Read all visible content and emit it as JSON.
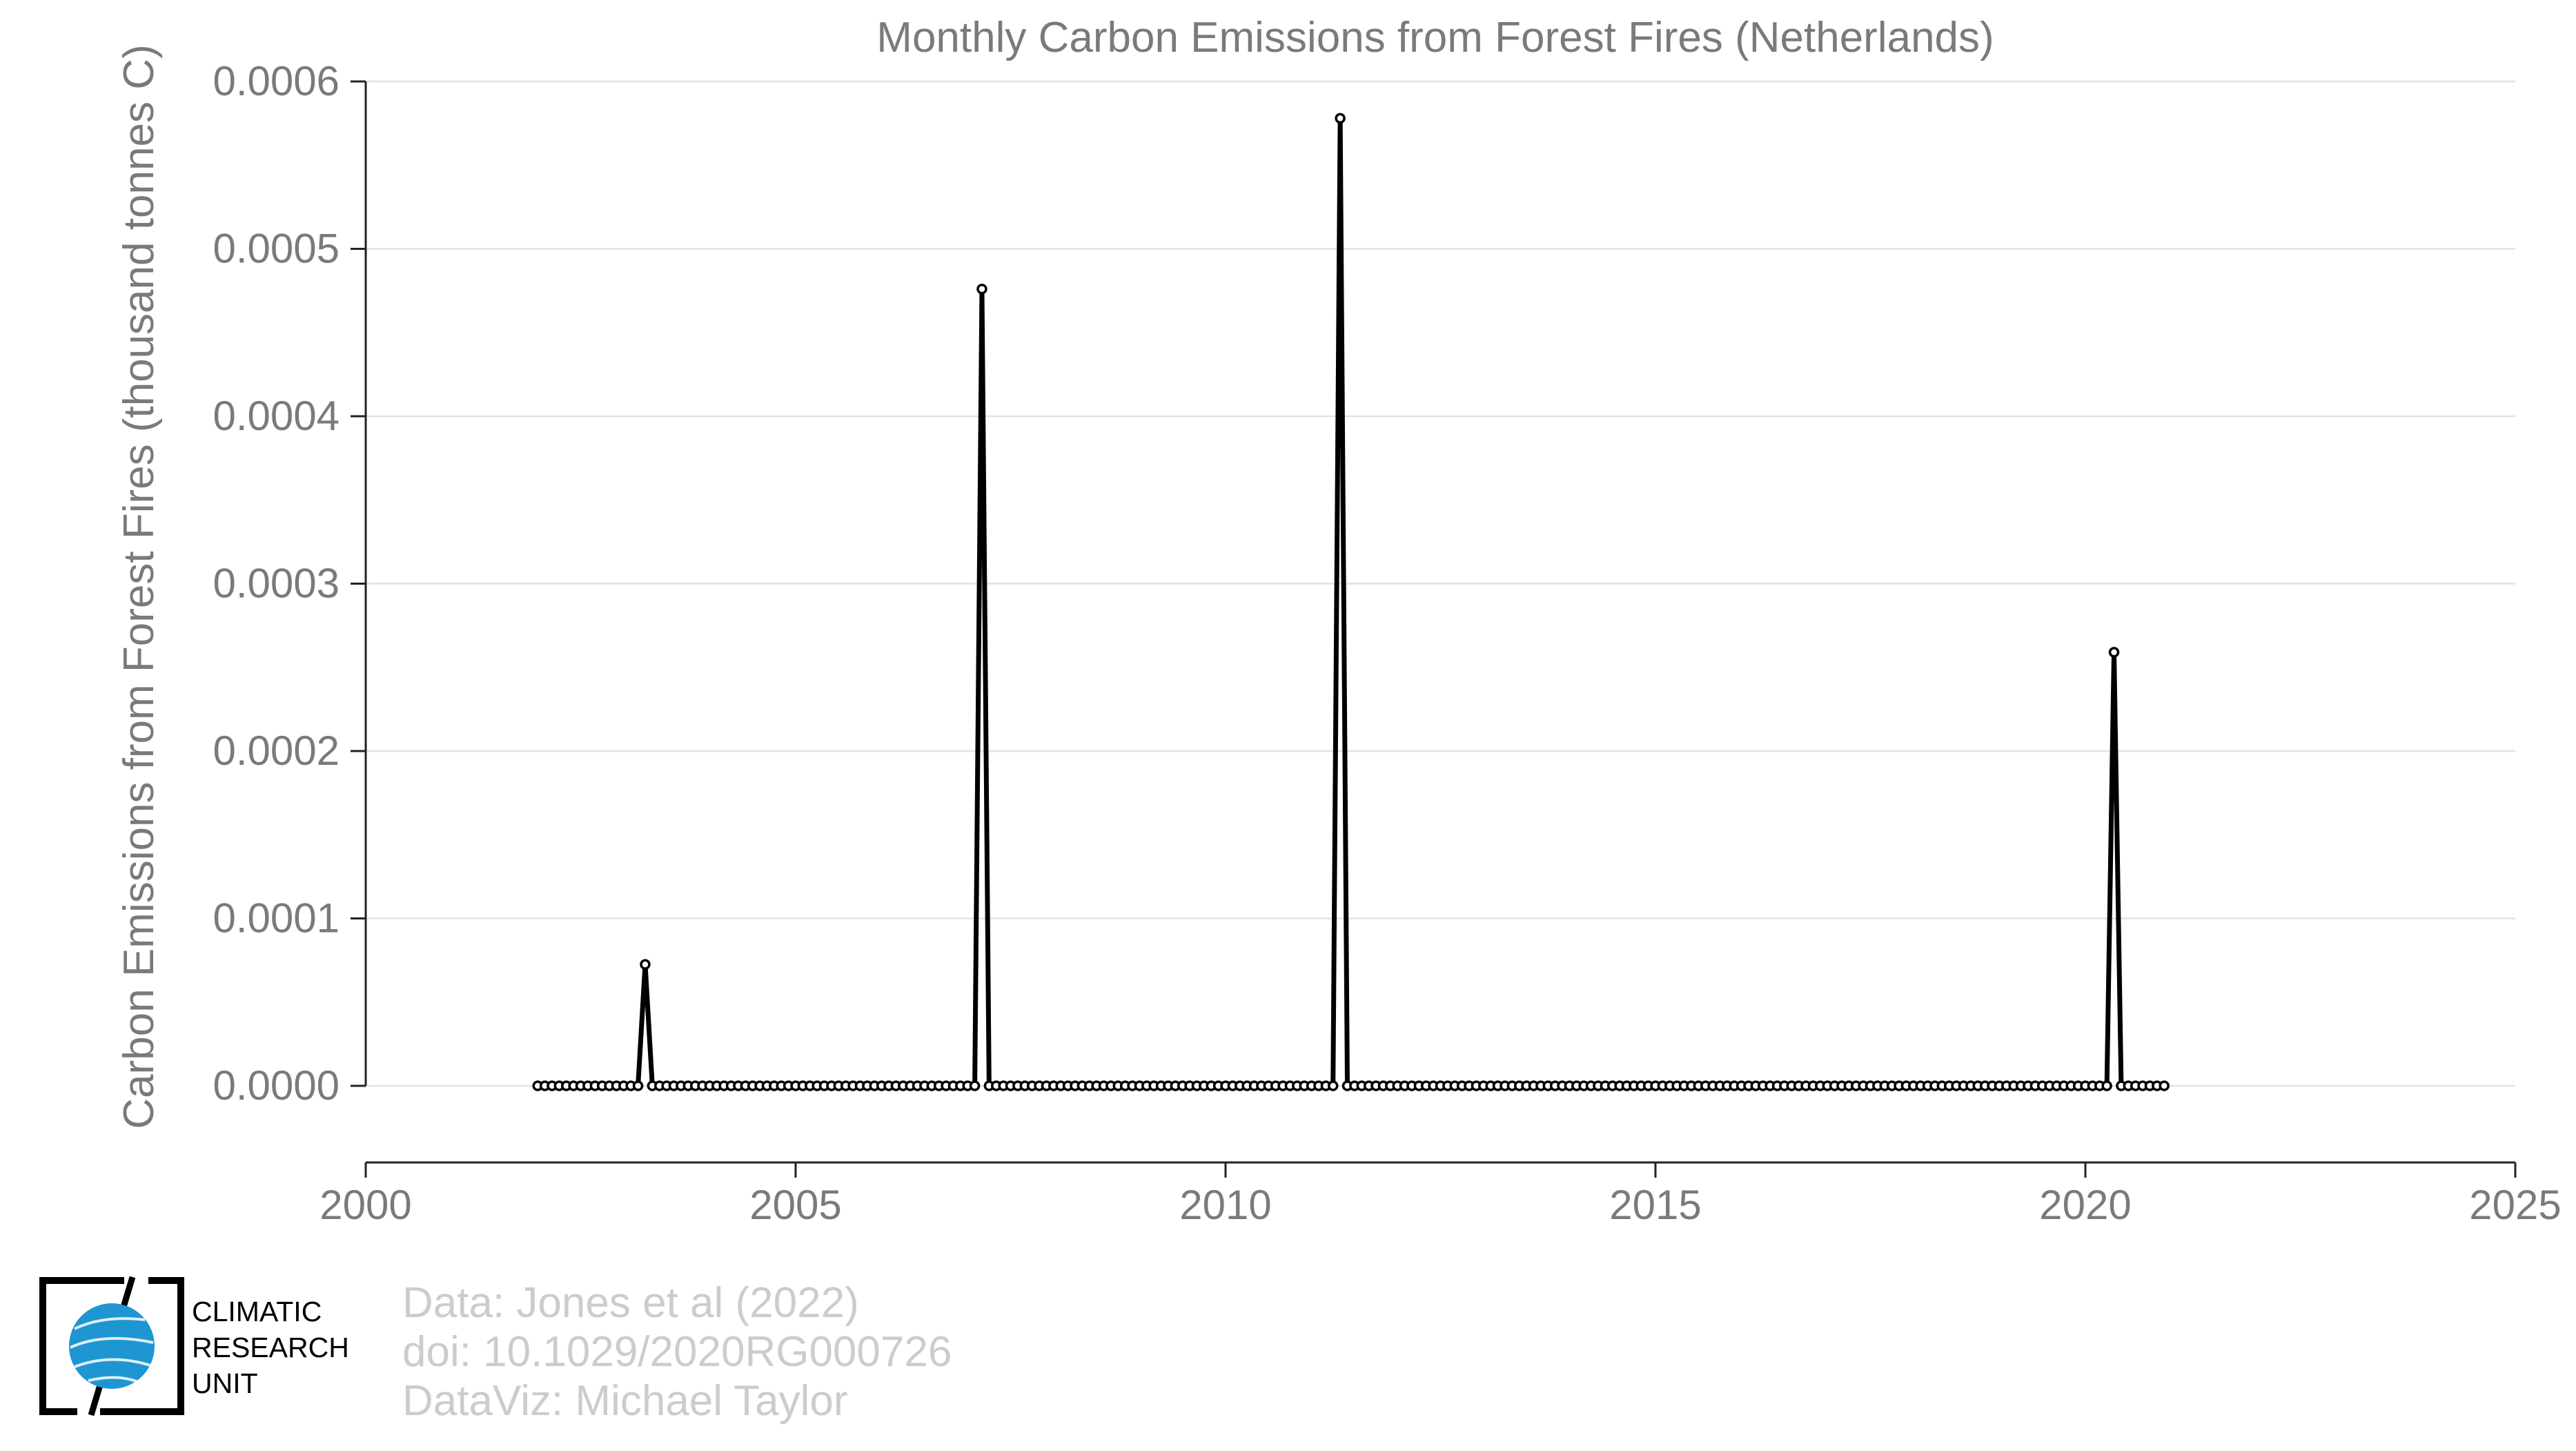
{
  "chart_data": {
    "type": "line",
    "title": "Monthly Carbon Emissions from Forest Fires (Netherlands)",
    "xlabel": "",
    "ylabel": "Carbon Emissions from Forest Fires (thousand tonnes C)",
    "xlim": [
      2000,
      2025
    ],
    "ylim": [
      -4.58e-05,
      0.0006
    ],
    "xticks": [
      "2000",
      "2005",
      "2010",
      "2015",
      "2020",
      "2025"
    ],
    "yticks": [
      "0.0000",
      "0.0001",
      "0.0002",
      "0.0003",
      "0.0004",
      "0.0005",
      "0.0006"
    ],
    "grid": "horizontal",
    "x_start": "2002-01",
    "x_end": "2020-12",
    "baseline_value": 0,
    "spikes": [
      {
        "date": "2003-04",
        "value": 7.25e-05
      },
      {
        "date": "2007-03",
        "value": 0.000476
      },
      {
        "date": "2011-05",
        "value": 0.000578
      },
      {
        "date": "2020-05",
        "value": 0.000259
      }
    ],
    "series_color": "#000000"
  },
  "credits": {
    "line1": "Data: Jones et al (2022)",
    "line2": "doi: 10.1029/2020RG000726",
    "line3": "DataViz: Michael Taylor"
  },
  "logo": {
    "line1": "CLIMATIC",
    "line2": "RESEARCH",
    "line3": "UNIT",
    "colors": {
      "globe": "#1e96d2",
      "frame": "#000000"
    }
  }
}
